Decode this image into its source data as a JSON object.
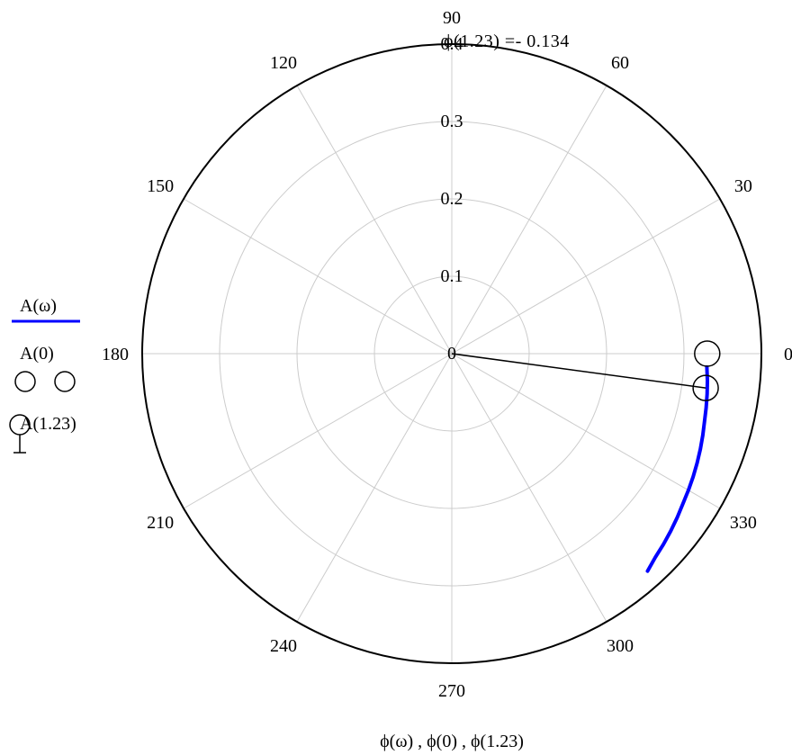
{
  "chart_data": {
    "type": "polar",
    "title": "",
    "xlabel": "ϕ(ω) , ϕ(0) , ϕ(1.23)",
    "angle_ticks": [
      "0",
      "30",
      "60",
      "90",
      "120",
      "150",
      "180",
      "210",
      "240",
      "270",
      "300",
      "330"
    ],
    "radial_ticks": [
      "0",
      "0.1",
      "0.2",
      "0.3",
      "0.4"
    ],
    "radial_range": [
      0,
      0.4
    ],
    "grid": true,
    "legend_position": "left",
    "annotation": "ϕ(1.23)  =- 0.134",
    "series": [
      {
        "name": "A(ω)",
        "color": "#0000ff",
        "style": "line",
        "points": [
          {
            "theta_deg": -3.0,
            "r": 0.33
          },
          {
            "theta_deg": -6.0,
            "r": 0.332
          },
          {
            "theta_deg": -9.0,
            "r": 0.334
          },
          {
            "theta_deg": -12.0,
            "r": 0.336
          },
          {
            "theta_deg": -15.0,
            "r": 0.338
          },
          {
            "theta_deg": -18.0,
            "r": 0.341
          },
          {
            "theta_deg": -21.0,
            "r": 0.344
          },
          {
            "theta_deg": -24.0,
            "r": 0.347
          },
          {
            "theta_deg": -27.0,
            "r": 0.35
          },
          {
            "theta_deg": -30.0,
            "r": 0.353
          },
          {
            "theta_deg": -33.0,
            "r": 0.356
          },
          {
            "theta_deg": -36.0,
            "r": 0.36
          },
          {
            "theta_deg": -39.0,
            "r": 0.364
          },
          {
            "theta_deg": -42.0,
            "r": 0.368
          },
          {
            "theta_deg": -45.0,
            "r": 0.372
          },
          {
            "theta_deg": -48.0,
            "r": 0.378
          }
        ]
      },
      {
        "name": "A(0)",
        "color": "#000000",
        "style": "circle-marker",
        "points": [
          {
            "theta_deg": 0.0,
            "r": 0.33
          }
        ]
      },
      {
        "name": "A(1.23)",
        "color": "#000000",
        "style": "circle-marker",
        "points": [
          {
            "theta_deg": -7.7,
            "r": 0.331
          }
        ]
      }
    ]
  }
}
